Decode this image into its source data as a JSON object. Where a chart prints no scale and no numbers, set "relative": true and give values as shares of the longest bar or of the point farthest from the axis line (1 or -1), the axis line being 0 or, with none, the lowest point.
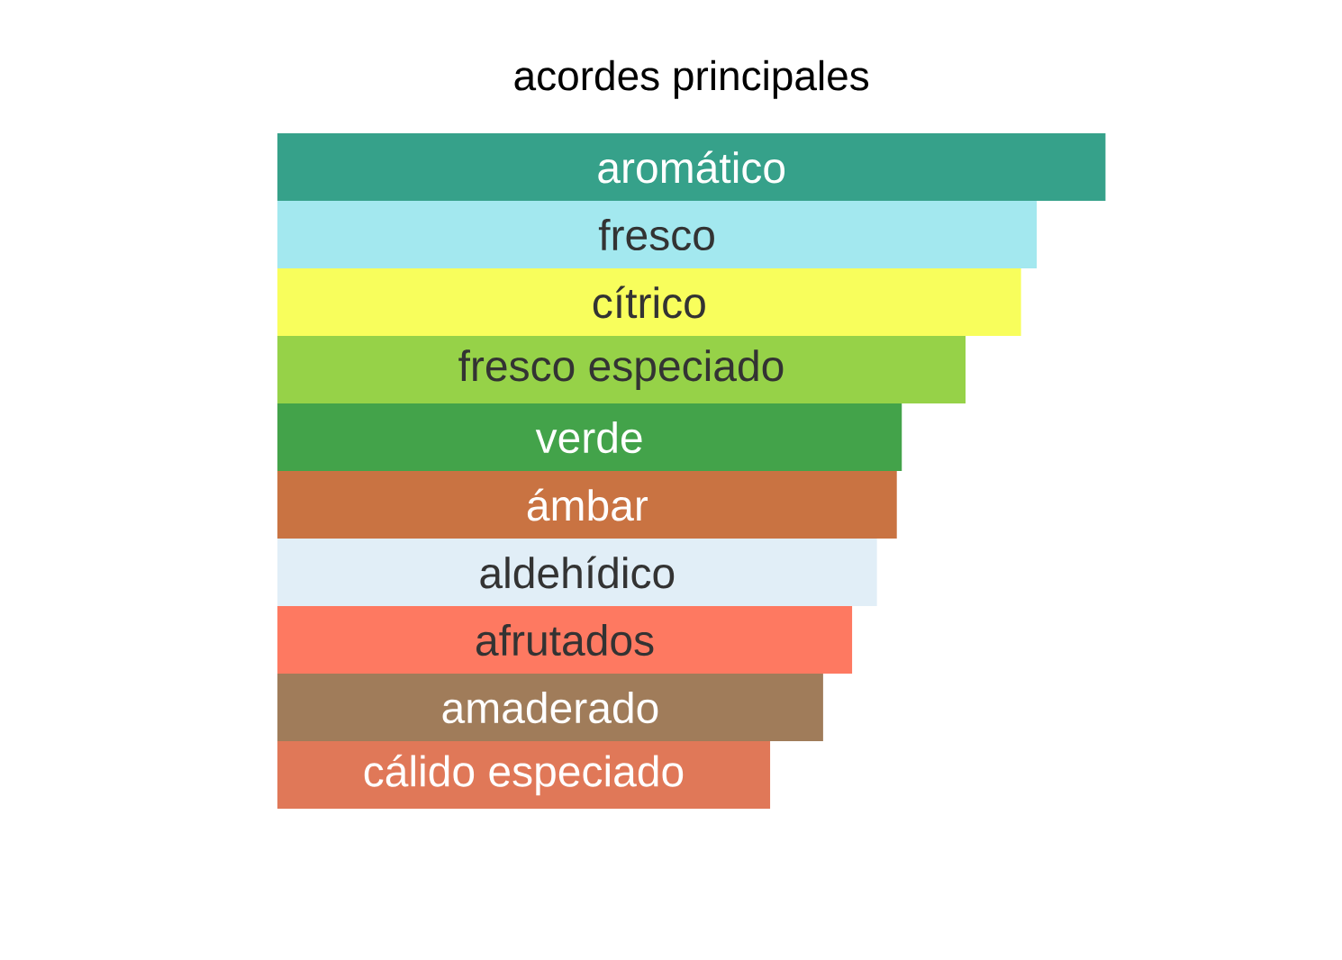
{
  "chart_data": {
    "type": "bar",
    "orientation": "horizontal",
    "relative": true,
    "title": "acordes principales",
    "categories": [
      "aromático",
      "fresco",
      "cítrico",
      "fresco especiado",
      "verde",
      "ámbar",
      "aldehídico",
      "afrutados",
      "amaderado",
      "cálido especiado"
    ],
    "values": [
      1,
      0.917,
      0.898,
      0.831,
      0.754,
      0.748,
      0.724,
      0.694,
      0.659,
      0.595
    ],
    "colors": [
      "#36a18a",
      "#a3e8ef",
      "#f8fe5c",
      "#96d248",
      "#43a34a",
      "#c97342",
      "#e1eef7",
      "#fe7961",
      "#a07c5a",
      "#e07858"
    ]
  }
}
